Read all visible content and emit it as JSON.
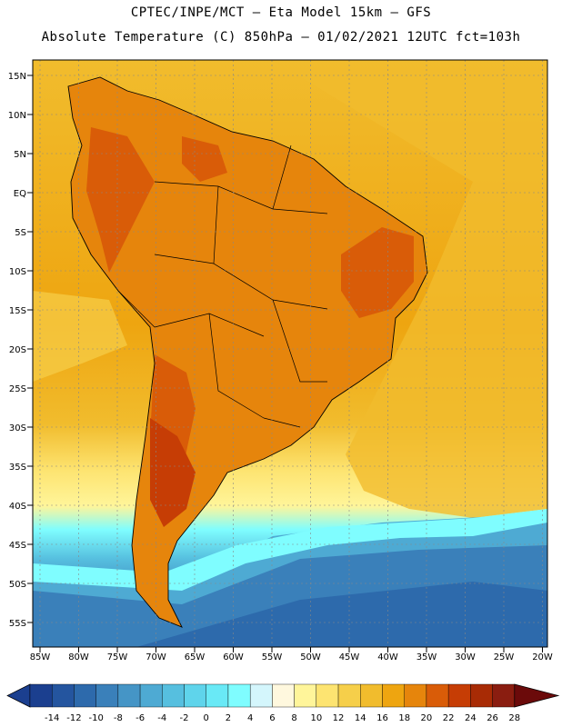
{
  "header": {
    "line1": "CPTEC/INPE/MCT —  Eta Model 15km — GFS",
    "line2": "Absolute Temperature (C) 850hPa — 01/02/2021 12UTC fct=103h"
  },
  "map": {
    "lat_labels": [
      "15N",
      "10N",
      "5N",
      "EQ",
      "5S",
      "10S",
      "15S",
      "20S",
      "25S",
      "30S",
      "35S",
      "40S",
      "45S",
      "50S",
      "55S"
    ],
    "lon_labels": [
      "85W",
      "80W",
      "75W",
      "70W",
      "65W",
      "60W",
      "55W",
      "50W",
      "45W",
      "40W",
      "35W",
      "30W",
      "25W",
      "20W"
    ]
  },
  "colorbar": {
    "labels": [
      "-14",
      "-12",
      "-10",
      "-8",
      "-6",
      "-4",
      "-2",
      "0",
      "2",
      "4",
      "6",
      "8",
      "10",
      "12",
      "14",
      "16",
      "18",
      "20",
      "22",
      "24",
      "26",
      "28"
    ],
    "colors": [
      "#1b3f8f",
      "#24559f",
      "#2d6aac",
      "#3a80ba",
      "#4595c6",
      "#4eaad3",
      "#56bfdf",
      "#5fd4eb",
      "#69e9f6",
      "#7ffdff",
      "#d4f6fc",
      "#fff8de",
      "#fff59a",
      "#fde471",
      "#f6cf4a",
      "#f1bc2d",
      "#eea510",
      "#e6850c",
      "#d95c08",
      "#c63d05",
      "#a82b05",
      "#8a1d10",
      "#6b0a0a"
    ]
  }
}
